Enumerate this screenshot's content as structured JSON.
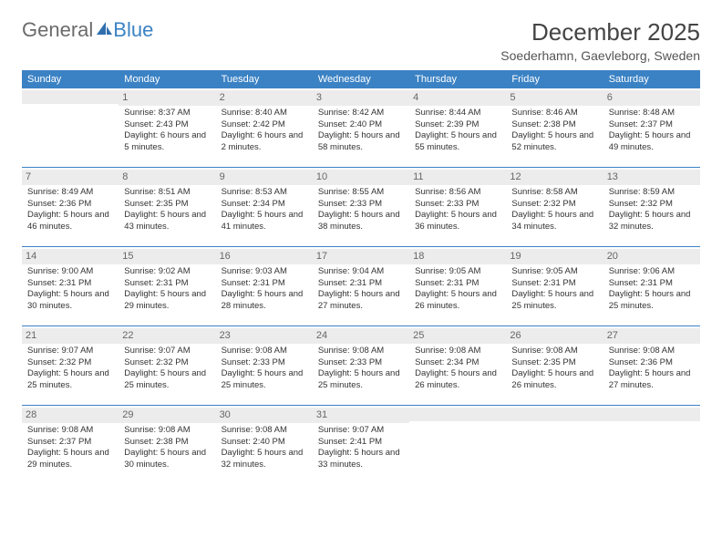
{
  "brand": {
    "word1": "General",
    "word2": "Blue"
  },
  "title": "December 2025",
  "location": "Soederhamn, Gaevleborg, Sweden",
  "header_bg": "#3b82c4",
  "dayHeaders": [
    "Sunday",
    "Monday",
    "Tuesday",
    "Wednesday",
    "Thursday",
    "Friday",
    "Saturday"
  ],
  "weeks": [
    [
      {
        "n": "",
        "sr": "",
        "ss": "",
        "dl": ""
      },
      {
        "n": "1",
        "sr": "Sunrise: 8:37 AM",
        "ss": "Sunset: 2:43 PM",
        "dl": "Daylight: 6 hours and 5 minutes."
      },
      {
        "n": "2",
        "sr": "Sunrise: 8:40 AM",
        "ss": "Sunset: 2:42 PM",
        "dl": "Daylight: 6 hours and 2 minutes."
      },
      {
        "n": "3",
        "sr": "Sunrise: 8:42 AM",
        "ss": "Sunset: 2:40 PM",
        "dl": "Daylight: 5 hours and 58 minutes."
      },
      {
        "n": "4",
        "sr": "Sunrise: 8:44 AM",
        "ss": "Sunset: 2:39 PM",
        "dl": "Daylight: 5 hours and 55 minutes."
      },
      {
        "n": "5",
        "sr": "Sunrise: 8:46 AM",
        "ss": "Sunset: 2:38 PM",
        "dl": "Daylight: 5 hours and 52 minutes."
      },
      {
        "n": "6",
        "sr": "Sunrise: 8:48 AM",
        "ss": "Sunset: 2:37 PM",
        "dl": "Daylight: 5 hours and 49 minutes."
      }
    ],
    [
      {
        "n": "7",
        "sr": "Sunrise: 8:49 AM",
        "ss": "Sunset: 2:36 PM",
        "dl": "Daylight: 5 hours and 46 minutes."
      },
      {
        "n": "8",
        "sr": "Sunrise: 8:51 AM",
        "ss": "Sunset: 2:35 PM",
        "dl": "Daylight: 5 hours and 43 minutes."
      },
      {
        "n": "9",
        "sr": "Sunrise: 8:53 AM",
        "ss": "Sunset: 2:34 PM",
        "dl": "Daylight: 5 hours and 41 minutes."
      },
      {
        "n": "10",
        "sr": "Sunrise: 8:55 AM",
        "ss": "Sunset: 2:33 PM",
        "dl": "Daylight: 5 hours and 38 minutes."
      },
      {
        "n": "11",
        "sr": "Sunrise: 8:56 AM",
        "ss": "Sunset: 2:33 PM",
        "dl": "Daylight: 5 hours and 36 minutes."
      },
      {
        "n": "12",
        "sr": "Sunrise: 8:58 AM",
        "ss": "Sunset: 2:32 PM",
        "dl": "Daylight: 5 hours and 34 minutes."
      },
      {
        "n": "13",
        "sr": "Sunrise: 8:59 AM",
        "ss": "Sunset: 2:32 PM",
        "dl": "Daylight: 5 hours and 32 minutes."
      }
    ],
    [
      {
        "n": "14",
        "sr": "Sunrise: 9:00 AM",
        "ss": "Sunset: 2:31 PM",
        "dl": "Daylight: 5 hours and 30 minutes."
      },
      {
        "n": "15",
        "sr": "Sunrise: 9:02 AM",
        "ss": "Sunset: 2:31 PM",
        "dl": "Daylight: 5 hours and 29 minutes."
      },
      {
        "n": "16",
        "sr": "Sunrise: 9:03 AM",
        "ss": "Sunset: 2:31 PM",
        "dl": "Daylight: 5 hours and 28 minutes."
      },
      {
        "n": "17",
        "sr": "Sunrise: 9:04 AM",
        "ss": "Sunset: 2:31 PM",
        "dl": "Daylight: 5 hours and 27 minutes."
      },
      {
        "n": "18",
        "sr": "Sunrise: 9:05 AM",
        "ss": "Sunset: 2:31 PM",
        "dl": "Daylight: 5 hours and 26 minutes."
      },
      {
        "n": "19",
        "sr": "Sunrise: 9:05 AM",
        "ss": "Sunset: 2:31 PM",
        "dl": "Daylight: 5 hours and 25 minutes."
      },
      {
        "n": "20",
        "sr": "Sunrise: 9:06 AM",
        "ss": "Sunset: 2:31 PM",
        "dl": "Daylight: 5 hours and 25 minutes."
      }
    ],
    [
      {
        "n": "21",
        "sr": "Sunrise: 9:07 AM",
        "ss": "Sunset: 2:32 PM",
        "dl": "Daylight: 5 hours and 25 minutes."
      },
      {
        "n": "22",
        "sr": "Sunrise: 9:07 AM",
        "ss": "Sunset: 2:32 PM",
        "dl": "Daylight: 5 hours and 25 minutes."
      },
      {
        "n": "23",
        "sr": "Sunrise: 9:08 AM",
        "ss": "Sunset: 2:33 PM",
        "dl": "Daylight: 5 hours and 25 minutes."
      },
      {
        "n": "24",
        "sr": "Sunrise: 9:08 AM",
        "ss": "Sunset: 2:33 PM",
        "dl": "Daylight: 5 hours and 25 minutes."
      },
      {
        "n": "25",
        "sr": "Sunrise: 9:08 AM",
        "ss": "Sunset: 2:34 PM",
        "dl": "Daylight: 5 hours and 26 minutes."
      },
      {
        "n": "26",
        "sr": "Sunrise: 9:08 AM",
        "ss": "Sunset: 2:35 PM",
        "dl": "Daylight: 5 hours and 26 minutes."
      },
      {
        "n": "27",
        "sr": "Sunrise: 9:08 AM",
        "ss": "Sunset: 2:36 PM",
        "dl": "Daylight: 5 hours and 27 minutes."
      }
    ],
    [
      {
        "n": "28",
        "sr": "Sunrise: 9:08 AM",
        "ss": "Sunset: 2:37 PM",
        "dl": "Daylight: 5 hours and 29 minutes."
      },
      {
        "n": "29",
        "sr": "Sunrise: 9:08 AM",
        "ss": "Sunset: 2:38 PM",
        "dl": "Daylight: 5 hours and 30 minutes."
      },
      {
        "n": "30",
        "sr": "Sunrise: 9:08 AM",
        "ss": "Sunset: 2:40 PM",
        "dl": "Daylight: 5 hours and 32 minutes."
      },
      {
        "n": "31",
        "sr": "Sunrise: 9:07 AM",
        "ss": "Sunset: 2:41 PM",
        "dl": "Daylight: 5 hours and 33 minutes."
      },
      {
        "n": "",
        "sr": "",
        "ss": "",
        "dl": ""
      },
      {
        "n": "",
        "sr": "",
        "ss": "",
        "dl": ""
      },
      {
        "n": "",
        "sr": "",
        "ss": "",
        "dl": ""
      }
    ]
  ]
}
